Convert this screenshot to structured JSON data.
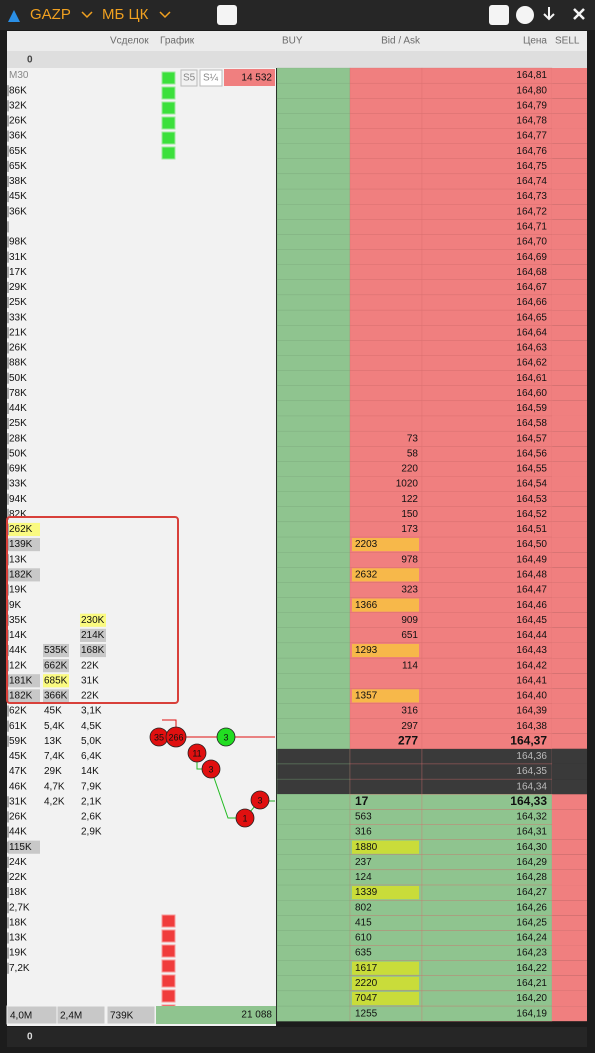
{
  "header": {
    "symbol": "GAZP",
    "exchange": "МБ ЦК"
  },
  "columns": [
    "Vсделок",
    "График",
    "BUY",
    "Bid / Ask",
    "Цена",
    "SELL"
  ],
  "top_count": "0",
  "bottom_count": "0",
  "chart": {
    "labels": [
      "S5",
      "S¼"
    ],
    "top_value": "14 532",
    "bottom_value": "21 088",
    "markers": [
      {
        "label": "35",
        "color": "#e01010"
      },
      {
        "label": "266",
        "color": "#e01010"
      },
      {
        "label": "3",
        "color": "#22dd22"
      },
      {
        "label": "11",
        "color": "#e01010"
      },
      {
        "label": "3",
        "color": "#e01010"
      },
      {
        "label": "3",
        "color": "#e01010"
      },
      {
        "label": "1",
        "color": "#e01010"
      }
    ]
  },
  "totals": [
    "4,0M",
    "2,4M",
    "739K"
  ],
  "rows": [
    {
      "p": "164,81",
      "side": "ask",
      "v1": "M30"
    },
    {
      "p": "164,80",
      "side": "ask",
      "v1": "86K"
    },
    {
      "p": "164,79",
      "side": "ask",
      "v1": "32K"
    },
    {
      "p": "164,78",
      "side": "ask",
      "v1": "26K"
    },
    {
      "p": "164,77",
      "side": "ask",
      "v1": "36K"
    },
    {
      "p": "164,76",
      "side": "ask",
      "v1": "65K"
    },
    {
      "p": "164,75",
      "side": "ask",
      "v1": "65K"
    },
    {
      "p": "164,74",
      "side": "ask",
      "v1": "38K"
    },
    {
      "p": "164,73",
      "side": "ask",
      "v1": "45K"
    },
    {
      "p": "164,72",
      "side": "ask",
      "v1": "36K"
    },
    {
      "p": "164,71",
      "side": "ask"
    },
    {
      "p": "164,70",
      "side": "ask",
      "v1": "98K"
    },
    {
      "p": "164,69",
      "side": "ask",
      "v1": "31K"
    },
    {
      "p": "164,68",
      "side": "ask",
      "v1": "17K"
    },
    {
      "p": "164,67",
      "side": "ask",
      "v1": "29K"
    },
    {
      "p": "164,66",
      "side": "ask",
      "v1": "25K"
    },
    {
      "p": "164,65",
      "side": "ask",
      "v1": "33K"
    },
    {
      "p": "164,64",
      "side": "ask",
      "v1": "21K"
    },
    {
      "p": "164,63",
      "side": "ask",
      "v1": "26K"
    },
    {
      "p": "164,62",
      "side": "ask",
      "v1": "88K"
    },
    {
      "p": "164,61",
      "side": "ask",
      "v1": "50K"
    },
    {
      "p": "164,60",
      "side": "ask",
      "v1": "78K"
    },
    {
      "p": "164,59",
      "side": "ask",
      "v1": "44K"
    },
    {
      "p": "164,58",
      "side": "ask",
      "v1": "25K"
    },
    {
      "p": "164,57",
      "side": "ask",
      "v1": "28K",
      "s": "73"
    },
    {
      "p": "164,56",
      "side": "ask",
      "v1": "50K",
      "s": "58"
    },
    {
      "p": "164,55",
      "side": "ask",
      "v1": "69K",
      "s": "220"
    },
    {
      "p": "164,54",
      "side": "ask",
      "v1": "33K",
      "s": "1020"
    },
    {
      "p": "164,53",
      "side": "ask",
      "v1": "94K",
      "s": "122"
    },
    {
      "p": "164,52",
      "side": "ask",
      "v1": "82K",
      "s": "150"
    },
    {
      "p": "164,51",
      "side": "ask",
      "v1": "262K",
      "h1": "#fafa80",
      "s": "173"
    },
    {
      "p": "164,50",
      "side": "ask",
      "v1": "139K",
      "h1": "#c8c8c8",
      "s": "2203",
      "hs": "#f7b84a"
    },
    {
      "p": "164,49",
      "side": "ask",
      "v1": "13K",
      "s": "978"
    },
    {
      "p": "164,48",
      "side": "ask",
      "v1": "182K",
      "h1": "#c8c8c8",
      "s": "2632",
      "hs": "#f7b84a"
    },
    {
      "p": "164,47",
      "side": "ask",
      "v1": "19K",
      "s": "323"
    },
    {
      "p": "164,46",
      "side": "ask",
      "v1": "9K",
      "s": "1366",
      "hs": "#f7b84a"
    },
    {
      "p": "164,45",
      "side": "ask",
      "v1": "35K",
      "v3": "230K",
      "h3": "#fafa80",
      "s": "909"
    },
    {
      "p": "164,44",
      "side": "ask",
      "v1": "14K",
      "v3": "214K",
      "h3": "#c8c8c8",
      "s": "651"
    },
    {
      "p": "164,43",
      "side": "ask",
      "v1": "44K",
      "v2": "535K",
      "h2": "#c8c8c8",
      "v3": "168K",
      "h3": "#c8c8c8",
      "s": "1293",
      "hs": "#f7b84a"
    },
    {
      "p": "164,42",
      "side": "ask",
      "v1": "12K",
      "v2": "662K",
      "h2": "#c8c8c8",
      "v3": "22K",
      "s": "114"
    },
    {
      "p": "164,41",
      "side": "ask",
      "v1": "181K",
      "h1": "#c8c8c8",
      "v2": "685K",
      "h2": "#fafa80",
      "v3": "31K"
    },
    {
      "p": "164,40",
      "side": "ask",
      "v1": "182K",
      "h1": "#c8c8c8",
      "v2": "366K",
      "h2": "#c8c8c8",
      "v3": "22K",
      "s": "1357",
      "hs": "#f7b84a"
    },
    {
      "p": "164,39",
      "side": "ask",
      "v1": "62K",
      "v2": "45K",
      "v3": "3,1K",
      "s": "316"
    },
    {
      "p": "164,38",
      "side": "ask",
      "v1": "61K",
      "v2": "5,4K",
      "v3": "4,5K",
      "s": "297"
    },
    {
      "p": "164,37",
      "side": "best_ask",
      "v1": "59K",
      "v2": "13K",
      "v3": "5,0K",
      "s": "277"
    },
    {
      "p": "164,36",
      "side": "spread",
      "v1": "45K",
      "v2": "7,4K",
      "v3": "6,4K"
    },
    {
      "p": "164,35",
      "side": "spread",
      "v1": "47K",
      "v2": "29K",
      "v3": "14K"
    },
    {
      "p": "164,34",
      "side": "spread",
      "v1": "46K",
      "v2": "4,7K",
      "v3": "7,9K"
    },
    {
      "p": "164,33",
      "side": "best_bid",
      "v1": "31K",
      "v2": "4,2K",
      "v3": "2,1K",
      "s": "17"
    },
    {
      "p": "164,32",
      "side": "bid",
      "v1": "26K",
      "v3": "2,6K",
      "s": "563"
    },
    {
      "p": "164,31",
      "side": "bid",
      "v1": "44K",
      "v3": "2,9K",
      "s": "316"
    },
    {
      "p": "164,30",
      "side": "bid",
      "v1": "115K",
      "h1": "#c8c8c8",
      "s": "1880",
      "hs": "#c9dc3a"
    },
    {
      "p": "164,29",
      "side": "bid",
      "v1": "24K",
      "s": "237"
    },
    {
      "p": "164,28",
      "side": "bid",
      "v1": "22K",
      "s": "124"
    },
    {
      "p": "164,27",
      "side": "bid",
      "v1": "18K",
      "s": "1339",
      "hs": "#c9dc3a"
    },
    {
      "p": "164,26",
      "side": "bid",
      "v1": "2,7K",
      "s": "802"
    },
    {
      "p": "164,25",
      "side": "bid",
      "v1": "18K",
      "s": "415"
    },
    {
      "p": "164,24",
      "side": "bid",
      "v1": "13K",
      "s": "610"
    },
    {
      "p": "164,23",
      "side": "bid",
      "v1": "19K",
      "s": "635"
    },
    {
      "p": "164,22",
      "side": "bid",
      "v1": "7,2K",
      "s": "1617",
      "hs": "#c9dc3a"
    },
    {
      "p": "164,21",
      "side": "bid",
      "s": "2220",
      "hs": "#c9dc3a"
    },
    {
      "p": "164,20",
      "side": "bid",
      "s": "7047",
      "hs": "#c9dc3a"
    },
    {
      "p": "164,19",
      "side": "bid",
      "s": "1255"
    }
  ]
}
